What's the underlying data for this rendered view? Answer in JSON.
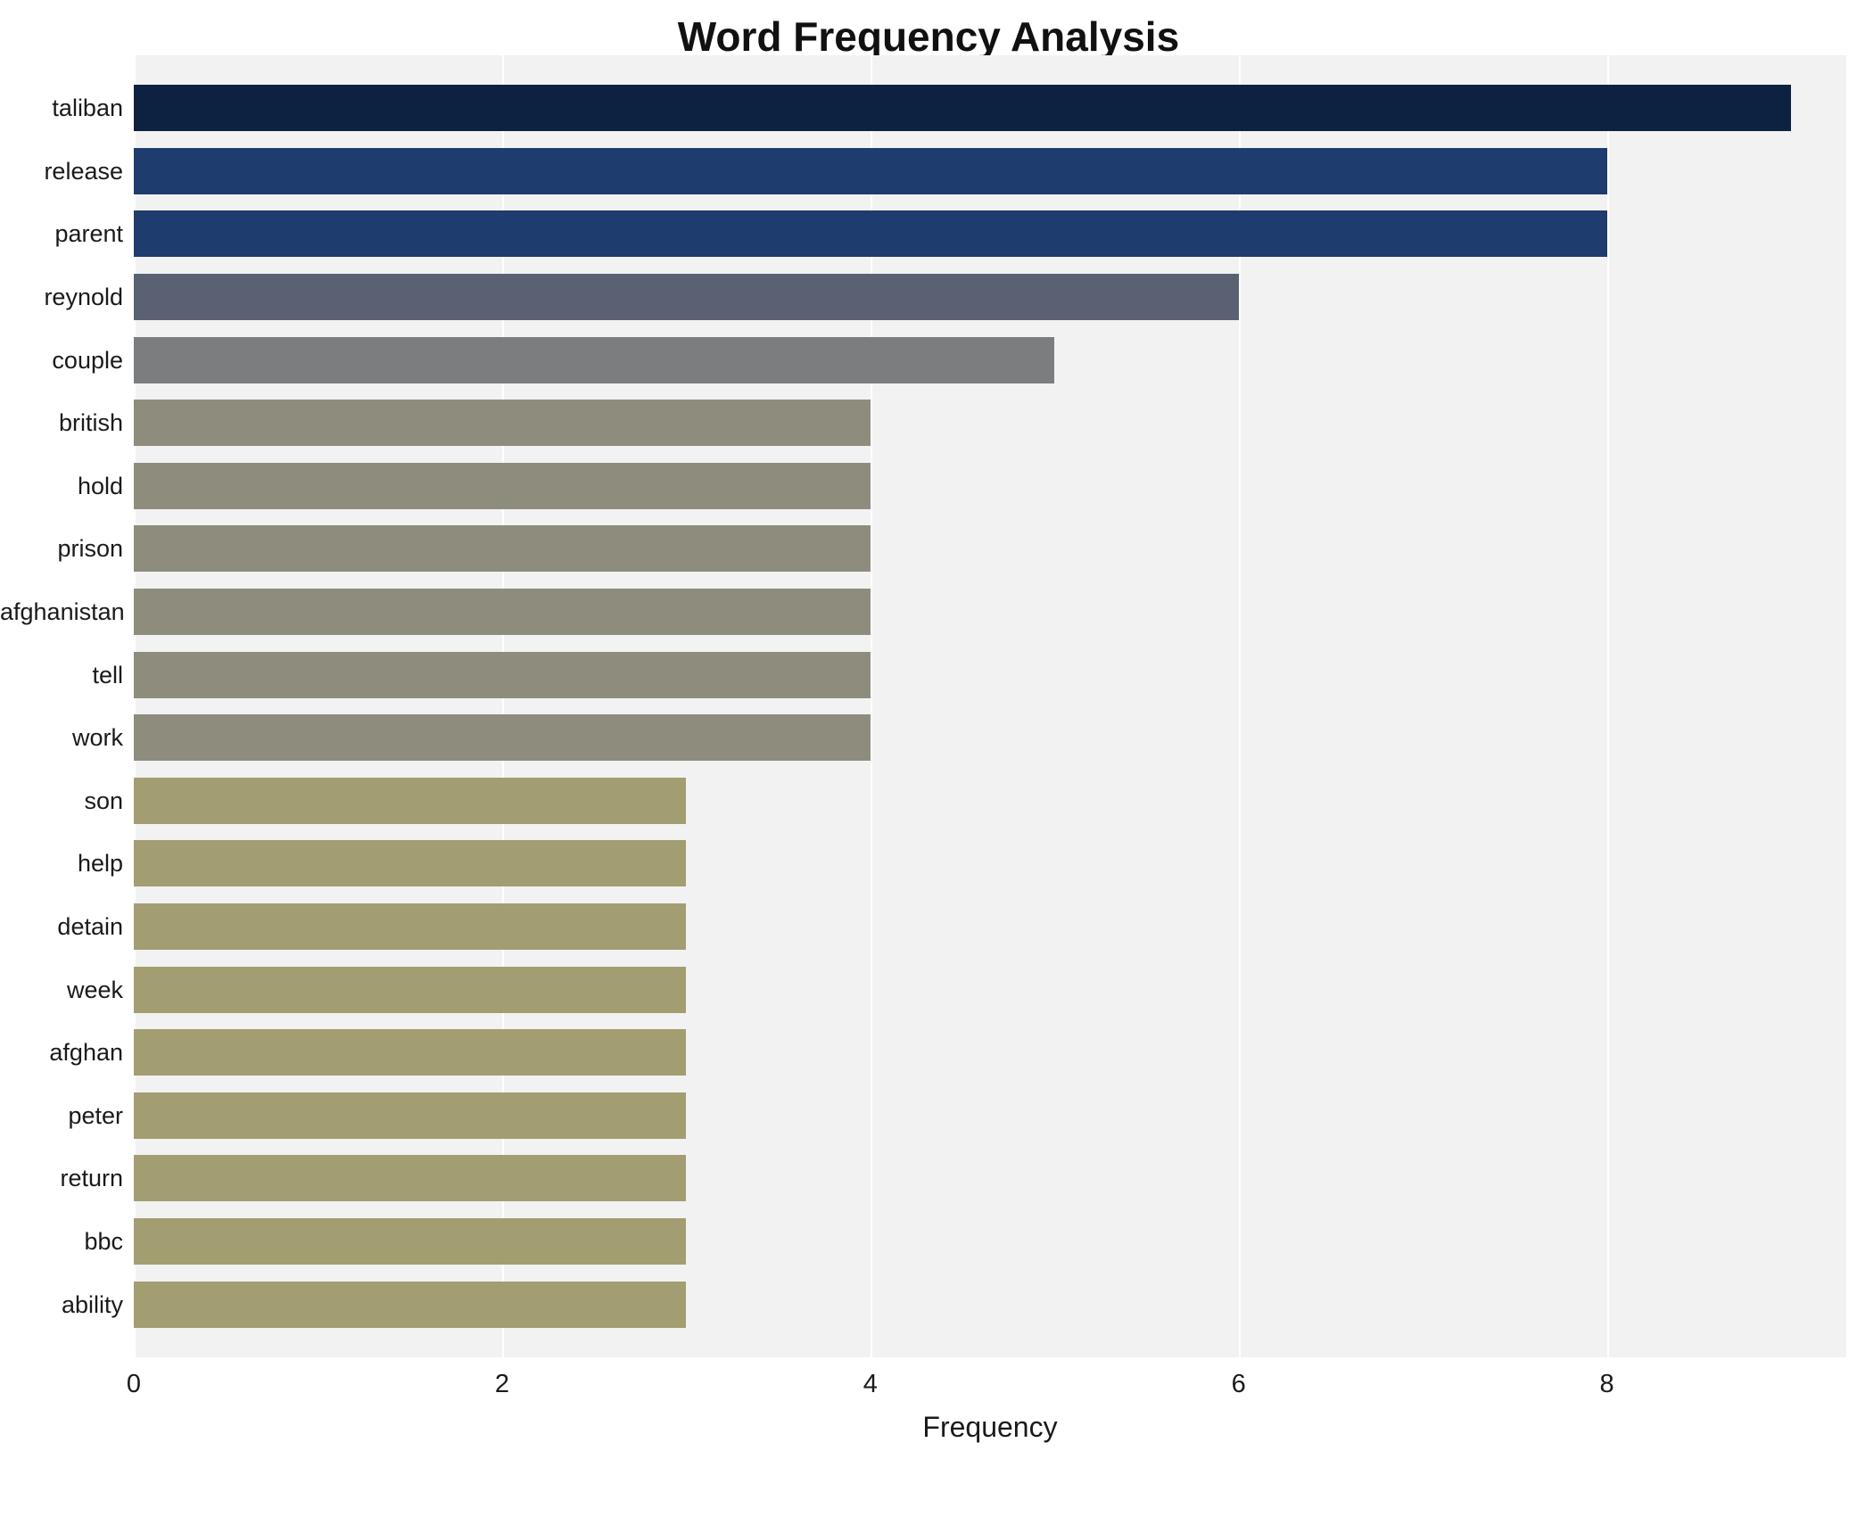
{
  "chart_data": {
    "type": "bar",
    "orientation": "horizontal",
    "title": "Word Frequency Analysis",
    "xlabel": "Frequency",
    "ylabel": "",
    "xlim": [
      0,
      9.3
    ],
    "xticks": [
      0,
      2,
      4,
      6,
      8
    ],
    "grid": true,
    "legend": "none",
    "plot_background": "#f2f2f3",
    "gridline_color": "#ffffff",
    "categories": [
      "taliban",
      "release",
      "parent",
      "reynold",
      "couple",
      "british",
      "hold",
      "prison",
      "afghanistan",
      "tell",
      "work",
      "son",
      "help",
      "detain",
      "week",
      "afghan",
      "peter",
      "return",
      "bbc",
      "ability"
    ],
    "values": [
      9,
      8,
      8,
      6,
      5,
      4,
      4,
      4,
      4,
      4,
      4,
      3,
      3,
      3,
      3,
      3,
      3,
      3,
      3,
      3
    ],
    "bar_colors": [
      "#0d2240",
      "#1e3c6e",
      "#1e3c6e",
      "#5a6172",
      "#7b7d7e",
      "#8e8c7d",
      "#8e8c7d",
      "#8e8c7d",
      "#8e8c7d",
      "#8e8c7d",
      "#8e8c7d",
      "#a39d72",
      "#a39d72",
      "#a39d72",
      "#a39d72",
      "#a39d72",
      "#a39d72",
      "#a39d72",
      "#a39d72",
      "#a39d72"
    ]
  }
}
